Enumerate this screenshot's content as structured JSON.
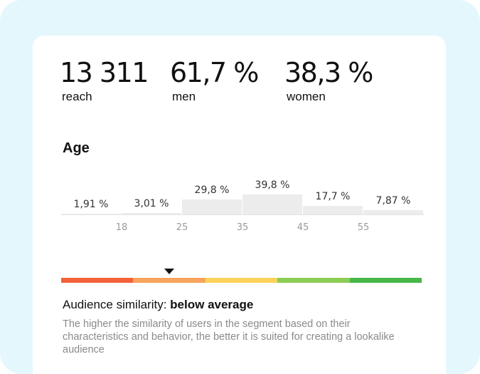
{
  "stats": {
    "reach": {
      "value": "13 311",
      "label": "reach"
    },
    "men": {
      "value": "61,7 %",
      "label": "men"
    },
    "women": {
      "value": "38,3 %",
      "label": "women"
    }
  },
  "age": {
    "title": "Age",
    "bars": [
      {
        "label": "1,91 %",
        "value": 1.91
      },
      {
        "label": "3,01 %",
        "value": 3.01
      },
      {
        "label": "29,8 %",
        "value": 29.8
      },
      {
        "label": "39,8 %",
        "value": 39.8
      },
      {
        "label": "17,7 %",
        "value": 17.7
      },
      {
        "label": "7,87 %",
        "value": 7.87
      }
    ],
    "ticks": [
      "18",
      "25",
      "35",
      "45",
      "55"
    ]
  },
  "similarity": {
    "prefix": "Audience similarity: ",
    "level": "below average",
    "description": "The higher the similarity of users in the segment based on their characteristics and behavior, the better it is suited for creating a lookalike audience",
    "marker_segment": 1,
    "scale_colors": [
      "#f4623a",
      "#f7a45c",
      "#fbd35a",
      "#8ccd55",
      "#47b847"
    ]
  }
}
